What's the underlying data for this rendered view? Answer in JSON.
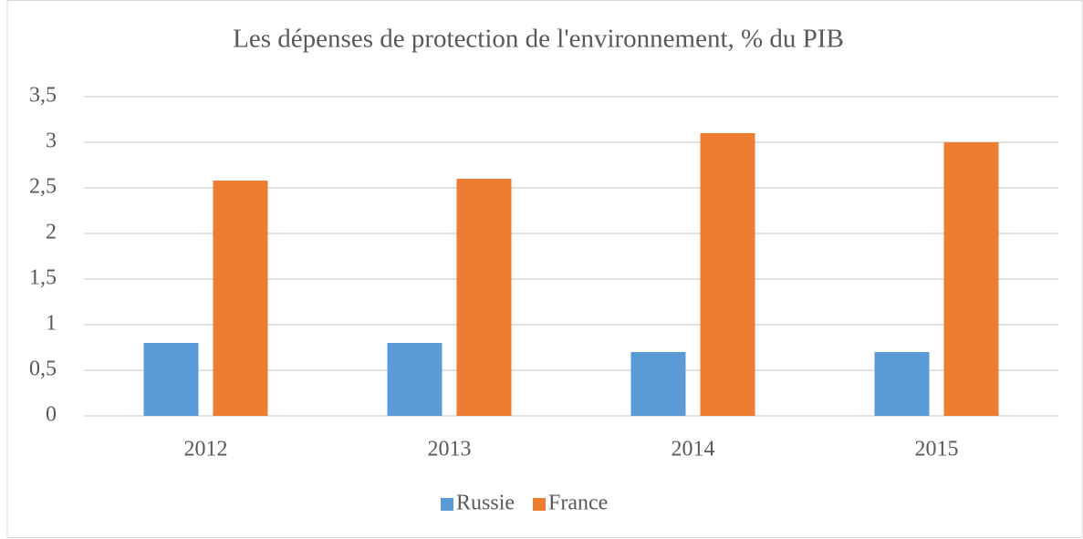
{
  "chart_data": {
    "type": "bar",
    "title": "Les dépenses de protection de l'environnement, % du PIB",
    "categories": [
      "2012",
      "2013",
      "2014",
      "2015"
    ],
    "series": [
      {
        "name": "Russie",
        "color": "#5b9bd5",
        "values": [
          0.8,
          0.8,
          0.7,
          0.7
        ]
      },
      {
        "name": "France",
        "color": "#ed7d31",
        "values": [
          2.58,
          2.6,
          3.1,
          3.0
        ]
      }
    ],
    "ylim": [
      0,
      3.5
    ],
    "yticks": [
      0,
      {
        "value": 0.5,
        "label": "0,5"
      },
      1,
      {
        "value": 1.5,
        "label": "1,5"
      },
      2,
      {
        "value": 2.5,
        "label": "2,5"
      },
      3,
      {
        "value": 3.5,
        "label": "3,5"
      }
    ],
    "grid": true,
    "legend": "bottom"
  }
}
